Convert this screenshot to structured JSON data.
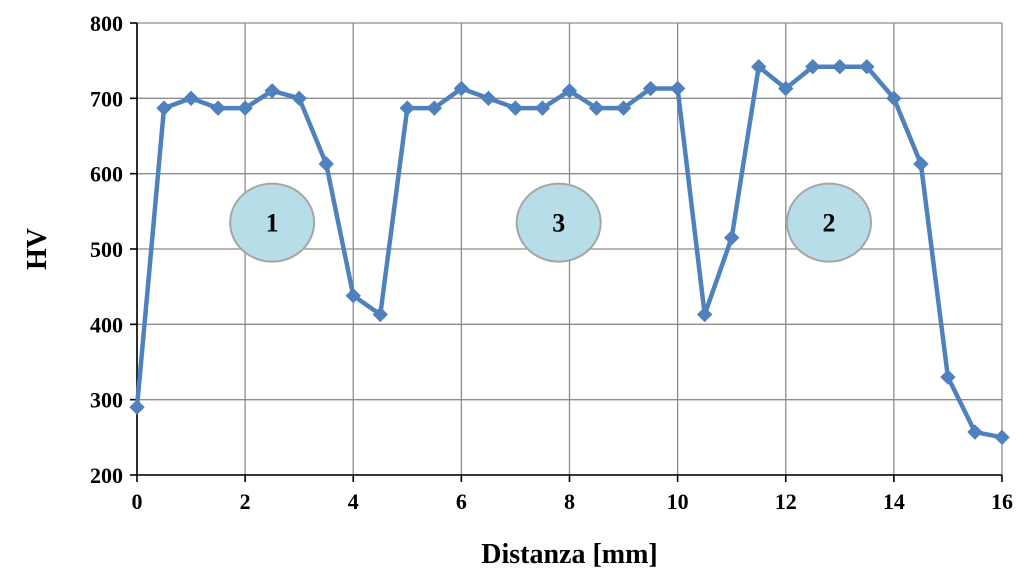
{
  "chart_data": {
    "type": "line",
    "title": "",
    "xlabel": "Distanza [mm]",
    "ylabel": "HV",
    "xlim": [
      0,
      16
    ],
    "ylim": [
      200,
      800
    ],
    "xticks": [
      0,
      2,
      4,
      6,
      8,
      10,
      12,
      14,
      16
    ],
    "yticks": [
      200,
      300,
      400,
      500,
      600,
      700,
      800
    ],
    "grid": true,
    "series": [
      {
        "color": "#4F81BD",
        "x": [
          0,
          0.5,
          1.0,
          1.5,
          2.0,
          2.5,
          3.0,
          3.5,
          4.0,
          4.5,
          5.0,
          5.5,
          6.0,
          6.5,
          7.0,
          7.5,
          8.0,
          8.5,
          9.0,
          9.5,
          10.0,
          10.5,
          11.0,
          11.5,
          12.0,
          12.5,
          13.0,
          13.5,
          14.0,
          14.5,
          15.0,
          15.5,
          16.0
        ],
        "y": [
          290,
          687,
          700,
          687,
          687,
          710,
          700,
          613,
          438,
          413,
          687,
          687,
          713,
          700,
          687,
          687,
          710,
          687,
          687,
          713,
          713,
          413,
          515,
          742,
          713,
          742,
          742,
          742,
          700,
          613,
          330,
          257,
          250
        ]
      }
    ],
    "annotations": [
      {
        "text": "1",
        "x": 2.5,
        "y": 535
      },
      {
        "text": "3",
        "x": 7.8,
        "y": 535
      },
      {
        "text": "2",
        "x": 12.8,
        "y": 535
      }
    ],
    "annotation_fill": "#B7DDE8"
  }
}
